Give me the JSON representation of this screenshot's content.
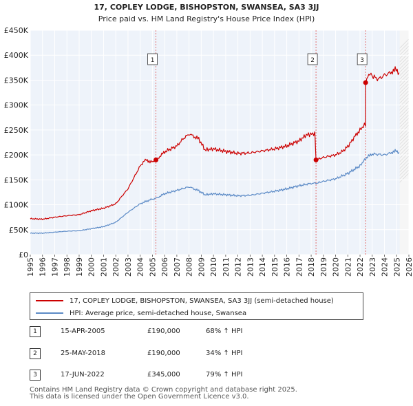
{
  "chart_data": {
    "type": "line",
    "title": "17, COPLEY LODGE, BISHOPSTON, SWANSEA, SA3 3JJ",
    "subtitle": "Price paid vs. HM Land Registry's House Price Index (HPI)",
    "x_range": [
      1995,
      2026
    ],
    "x_ticks": [
      "1995",
      "1996",
      "1997",
      "1998",
      "1999",
      "2000",
      "2001",
      "2002",
      "2003",
      "2004",
      "2005",
      "2006",
      "2007",
      "2008",
      "2009",
      "2010",
      "2011",
      "2012",
      "2013",
      "2014",
      "2015",
      "2016",
      "2017",
      "2018",
      "2019",
      "2020",
      "2021",
      "2022",
      "2023",
      "2024",
      "2025",
      "2026"
    ],
    "ylim": [
      0,
      450000
    ],
    "y_ticks": [
      {
        "value": 0,
        "label": "£0"
      },
      {
        "value": 50000,
        "label": "£50K"
      },
      {
        "value": 100000,
        "label": "£100K"
      },
      {
        "value": 150000,
        "label": "£150K"
      },
      {
        "value": 200000,
        "label": "£200K"
      },
      {
        "value": 250000,
        "label": "£250K"
      },
      {
        "value": 300000,
        "label": "£300K"
      },
      {
        "value": 350000,
        "label": "£350K"
      },
      {
        "value": 400000,
        "label": "£400K"
      },
      {
        "value": 450000,
        "label": "£450K"
      }
    ],
    "grid": true,
    "data_end": 2025.25,
    "series": [
      {
        "name": "17, COPLEY LODGE, BISHOPSTON, SWANSEA, SA3 3JJ (semi-detached house)",
        "color": "#cc0000",
        "points": [
          [
            1995,
            72000
          ],
          [
            1996,
            71000
          ],
          [
            1997,
            75000
          ],
          [
            1998,
            78000
          ],
          [
            1999,
            80000
          ],
          [
            2000,
            88000
          ],
          [
            2001,
            93000
          ],
          [
            2002,
            102000
          ],
          [
            2003,
            132000
          ],
          [
            2003.5,
            155000
          ],
          [
            2004,
            178000
          ],
          [
            2004.5,
            192000
          ],
          [
            2004.8,
            185000
          ],
          [
            2005.29,
            190000
          ],
          [
            2006,
            206000
          ],
          [
            2007,
            218000
          ],
          [
            2007.5,
            232000
          ],
          [
            2008,
            242000
          ],
          [
            2008.8,
            232000
          ],
          [
            2009.3,
            210000
          ],
          [
            2010,
            212000
          ],
          [
            2011,
            207000
          ],
          [
            2012,
            203000
          ],
          [
            2013,
            204000
          ],
          [
            2014,
            208000
          ],
          [
            2015,
            212000
          ],
          [
            2016,
            218000
          ],
          [
            2017,
            228000
          ],
          [
            2017.6,
            240000
          ],
          [
            2018.3,
            243000
          ],
          [
            2018.396,
            190000
          ],
          [
            2019,
            195000
          ],
          [
            2020,
            200000
          ],
          [
            2020.5,
            206000
          ],
          [
            2021,
            217000
          ],
          [
            2021.6,
            238000
          ],
          [
            2022,
            250000
          ],
          [
            2022.45,
            262000
          ],
          [
            2022.458,
            345000
          ],
          [
            2022.8,
            365000
          ],
          [
            2023,
            358000
          ],
          [
            2023.5,
            352000
          ],
          [
            2024,
            360000
          ],
          [
            2024.5,
            365000
          ],
          [
            2024.8,
            372000
          ],
          [
            2025.2,
            365000
          ]
        ]
      },
      {
        "name": "HPI: Average price, semi-detached house, Swansea",
        "color": "#5b8ac6",
        "points": [
          [
            1995,
            43000
          ],
          [
            1996,
            43000
          ],
          [
            1997,
            45000
          ],
          [
            1998,
            47000
          ],
          [
            1999,
            48000
          ],
          [
            2000,
            52000
          ],
          [
            2001,
            56000
          ],
          [
            2002,
            65000
          ],
          [
            2003,
            85000
          ],
          [
            2004,
            102000
          ],
          [
            2004.8,
            110000
          ],
          [
            2005.29,
            113000
          ],
          [
            2006,
            122000
          ],
          [
            2007,
            129000
          ],
          [
            2008,
            136000
          ],
          [
            2008.8,
            128000
          ],
          [
            2009.3,
            120000
          ],
          [
            2010,
            122000
          ],
          [
            2011,
            120000
          ],
          [
            2012,
            118000
          ],
          [
            2013,
            119000
          ],
          [
            2014,
            123000
          ],
          [
            2015,
            127000
          ],
          [
            2016,
            132000
          ],
          [
            2017,
            138000
          ],
          [
            2018,
            143000
          ],
          [
            2018.396,
            143000
          ],
          [
            2019,
            147000
          ],
          [
            2020,
            152000
          ],
          [
            2021,
            163000
          ],
          [
            2022,
            178000
          ],
          [
            2022.458,
            193000
          ],
          [
            2023,
            202000
          ],
          [
            2024,
            200000
          ],
          [
            2024.5,
            204000
          ],
          [
            2024.8,
            208000
          ],
          [
            2025.2,
            205000
          ]
        ]
      }
    ],
    "transactions": [
      {
        "marker": "1",
        "x": 2005.29,
        "price_value": 190000,
        "date": "15-APR-2005",
        "price": "£190,000",
        "hpi": "68% ↑ HPI"
      },
      {
        "marker": "2",
        "x": 2018.396,
        "price_value": 190000,
        "date": "25-MAY-2018",
        "price": "£190,000",
        "hpi": "34% ↑ HPI"
      },
      {
        "marker": "3",
        "x": 2022.458,
        "price_value": 345000,
        "date": "17-JUN-2022",
        "price": "£345,000",
        "hpi": "79% ↑ HPI"
      }
    ]
  },
  "legend": {
    "property_label": "17, COPLEY LODGE, BISHOPSTON, SWANSEA, SA3 3JJ (semi-detached house)",
    "hpi_label": "HPI: Average price, semi-detached house, Swansea"
  },
  "footer": {
    "line1": "Contains HM Land Registry data © Crown copyright and database right 2025.",
    "line2": "This data is licensed under the Open Government Licence v3.0."
  }
}
